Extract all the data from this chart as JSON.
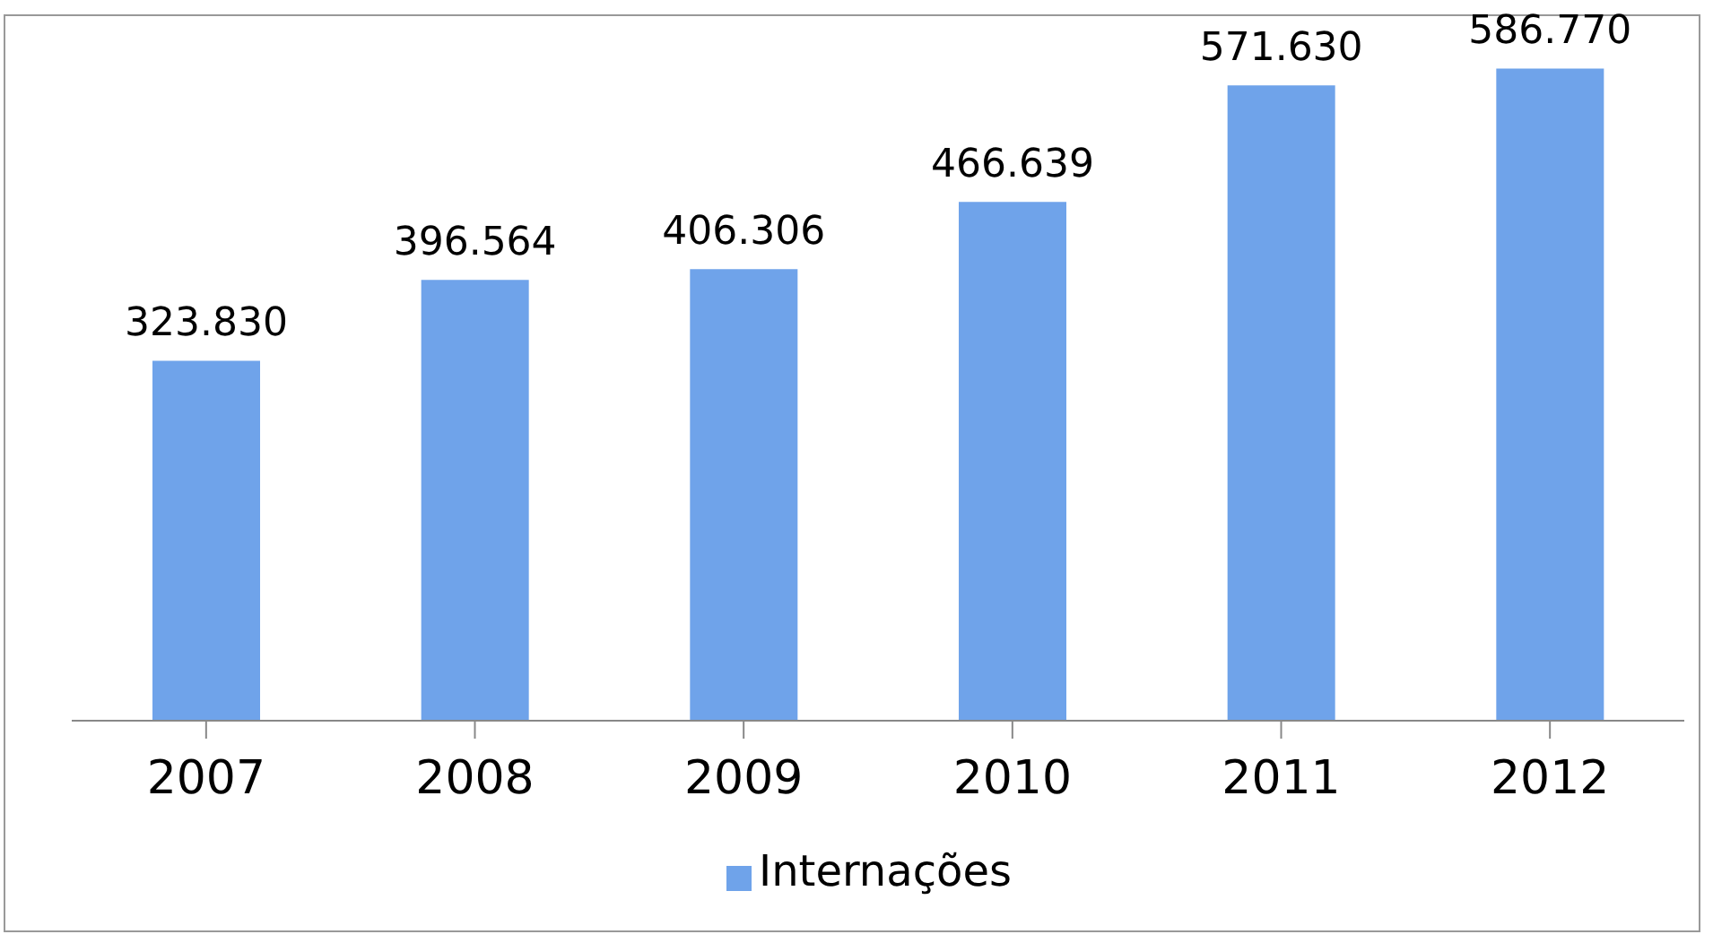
{
  "chart_data": {
    "type": "bar",
    "categories": [
      "2007",
      "2008",
      "2009",
      "2010",
      "2011",
      "2012"
    ],
    "series": [
      {
        "name": "Internações",
        "color": "#6fa3ea",
        "values": [
          323830,
          396564,
          406306,
          466639,
          571630,
          586770
        ],
        "value_labels": [
          "323.830",
          "396.564",
          "406.306",
          "466.639",
          "571.630",
          "586.770"
        ]
      }
    ],
    "legend": "bottom",
    "grid": false
  }
}
